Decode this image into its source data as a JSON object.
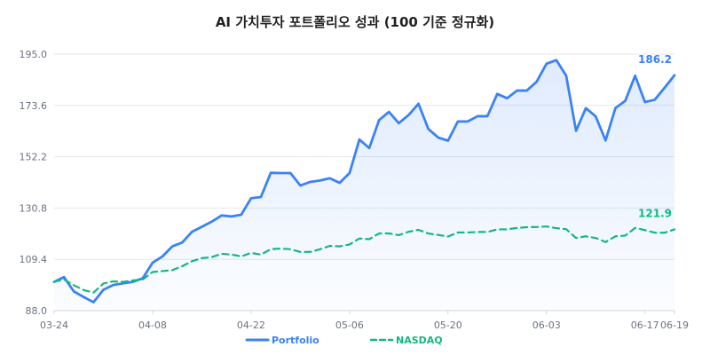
{
  "chart_data": {
    "type": "line",
    "title": "AI 가치투자 포트폴리오 성과 (100 기준 정규화)",
    "xlabel": "",
    "ylabel": "",
    "ylim": [
      88.0,
      195.0
    ],
    "y_ticks": [
      "88.0",
      "109.4",
      "130.8",
      "152.2",
      "173.6",
      "195.0"
    ],
    "x": [
      "03-24",
      "03-25",
      "03-26",
      "03-27",
      "03-28",
      "03-31",
      "04-01",
      "04-02",
      "04-03",
      "04-04",
      "04-07",
      "04-08",
      "04-09",
      "04-10",
      "04-11",
      "04-14",
      "04-15",
      "04-16",
      "04-17",
      "04-18",
      "04-21",
      "04-22",
      "04-23",
      "04-24",
      "04-25",
      "04-28",
      "04-29",
      "04-30",
      "05-01",
      "05-02",
      "05-05",
      "05-06",
      "05-07",
      "05-08",
      "05-09",
      "05-12",
      "05-13",
      "05-14",
      "05-15",
      "05-16",
      "05-19",
      "05-20",
      "05-21",
      "05-22",
      "05-23",
      "05-26",
      "05-27",
      "05-28",
      "05-29",
      "05-30",
      "06-02",
      "06-03",
      "06-04",
      "06-05",
      "06-06",
      "06-09",
      "06-10",
      "06-11",
      "06-12",
      "06-13",
      "06-16",
      "06-17",
      "06-18",
      "06-19"
    ],
    "x_tick_labels": [
      {
        "label": "03-24",
        "index": 0
      },
      {
        "label": "04-08",
        "index": 10
      },
      {
        "label": "04-22",
        "index": 20
      },
      {
        "label": "05-06",
        "index": 30
      },
      {
        "label": "05-20",
        "index": 40
      },
      {
        "label": "06-03",
        "index": 50
      },
      {
        "label": "06-17",
        "index": 60
      },
      {
        "label": "06-19",
        "index": 63
      }
    ],
    "grid": "horizontal",
    "legend_position": "bottom",
    "series": [
      {
        "name": "Portfolio",
        "color": "#3b82f6",
        "style": "solid",
        "area_fill": true,
        "end_label": "186.2",
        "values": [
          100.0,
          102.0,
          96.0,
          93.7,
          91.5,
          96.7,
          98.7,
          99.4,
          100.0,
          101.5,
          108.0,
          110.6,
          114.8,
          116.4,
          120.9,
          123.0,
          125.1,
          127.7,
          127.3,
          128.0,
          134.9,
          135.4,
          145.5,
          145.4,
          145.4,
          140.2,
          141.7,
          142.3,
          143.2,
          141.3,
          145.4,
          159.4,
          155.8,
          167.5,
          170.9,
          166.2,
          169.6,
          174.3,
          163.8,
          160.2,
          158.9,
          166.9,
          166.9,
          169.1,
          169.1,
          178.4,
          176.6,
          179.8,
          179.8,
          183.5,
          191.0,
          192.5,
          186.0,
          163.0,
          172.5,
          169.0,
          159.0,
          172.5,
          175.5,
          186.0,
          175.0,
          176.0,
          181.0,
          186.2
        ]
      },
      {
        "name": "NASDAQ",
        "color": "#10b981",
        "style": "dashed",
        "area_fill": false,
        "end_label": "121.9",
        "values": [
          100.0,
          101.0,
          98.6,
          96.6,
          95.5,
          99.3,
          100.2,
          100.0,
          100.6,
          101.0,
          104.1,
          104.5,
          104.9,
          106.5,
          108.6,
          109.9,
          110.3,
          111.7,
          111.4,
          110.6,
          112.1,
          111.4,
          113.6,
          113.9,
          113.6,
          112.5,
          112.5,
          113.6,
          115.0,
          114.8,
          115.6,
          118.1,
          117.8,
          120.2,
          120.2,
          119.5,
          120.9,
          121.7,
          120.2,
          119.6,
          118.9,
          120.6,
          120.6,
          120.8,
          120.8,
          121.9,
          121.9,
          122.5,
          122.8,
          122.9,
          123.1,
          122.4,
          122.0,
          118.3,
          119.0,
          118.3,
          116.6,
          119.0,
          119.3,
          122.5,
          121.6,
          120.5,
          120.5,
          121.9
        ]
      }
    ]
  }
}
